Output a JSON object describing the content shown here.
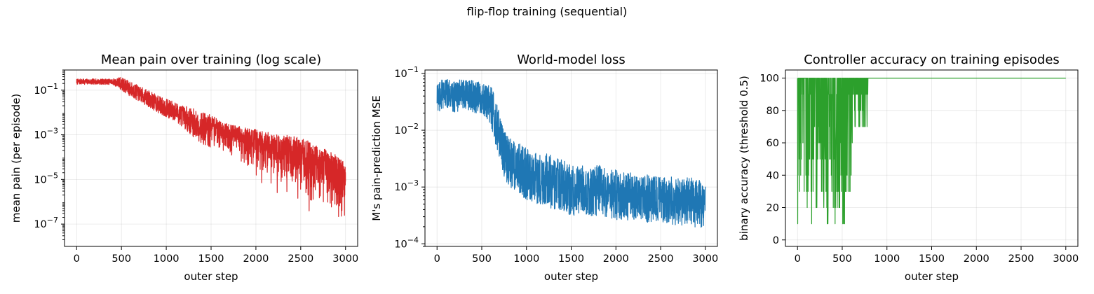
{
  "figure": {
    "suptitle": "flip-flop training (sequential)"
  },
  "chart_data": [
    {
      "type": "line",
      "title": "Mean pain over training (log scale)",
      "xlabel": "outer step",
      "ylabel": "mean pain (per episode)",
      "color": "#d62728",
      "yscale": "log",
      "xlim": [
        -135,
        3135
      ],
      "ylim": [
        1e-08,
        0.8
      ],
      "xticks": [
        0,
        500,
        1000,
        1500,
        2000,
        2500,
        3000
      ],
      "xtick_labels": [
        "0",
        "500",
        "1000",
        "1500",
        "2000",
        "2500",
        "3000"
      ],
      "yticks": [
        1e-07,
        1e-05,
        0.001,
        0.1
      ],
      "ytick_labels": [
        [
          "10",
          "−7"
        ],
        [
          "10",
          "−5"
        ],
        [
          "10",
          "−3"
        ],
        [
          "10",
          "−1"
        ]
      ],
      "grid": true,
      "series": [
        {
          "x": [
            0,
            100,
            200,
            300,
            400,
            500,
            550,
            600,
            700,
            800,
            900,
            1000,
            1100,
            1200,
            1300,
            1400,
            1500,
            1600,
            1700,
            1800,
            1900,
            2000,
            2100,
            2200,
            2300,
            2400,
            2500,
            2600,
            2700,
            2800,
            2900,
            3000
          ],
          "high": [
            0.32,
            0.32,
            0.32,
            0.32,
            0.32,
            0.4,
            0.3,
            0.25,
            0.15,
            0.1,
            0.06,
            0.04,
            0.03,
            0.02,
            0.015,
            0.01,
            0.008,
            0.004,
            0.003,
            0.0025,
            0.002,
            0.0018,
            0.0014,
            0.0012,
            0.001,
            0.0009,
            0.0007,
            0.0005,
            0.0003,
            0.0002,
            0.00012,
            5e-05
          ],
          "low": [
            0.18,
            0.18,
            0.18,
            0.18,
            0.18,
            0.1,
            0.07,
            0.05,
            0.03,
            0.018,
            0.01,
            0.006,
            0.004,
            0.002,
            0.0008,
            0.0004,
            0.0002,
            0.0001,
            6e-05,
            3e-05,
            1e-05,
            6e-06,
            3e-06,
            2e-06,
            1e-06,
            6e-07,
            4e-07,
            2e-07,
            2e-07,
            1e-07,
            6e-08,
            3e-08
          ]
        }
      ]
    },
    {
      "type": "line",
      "title": "World-model loss",
      "xlabel": "outer step",
      "ylabel": "M's pain-prediction MSE",
      "color": "#1f77b4",
      "yscale": "log",
      "xlim": [
        -135,
        3135
      ],
      "ylim": [
        9e-05,
        0.115
      ],
      "xticks": [
        0,
        500,
        1000,
        1500,
        2000,
        2500,
        3000
      ],
      "xtick_labels": [
        "0",
        "500",
        "1000",
        "1500",
        "2000",
        "2500",
        "3000"
      ],
      "yticks": [
        0.0001,
        0.001,
        0.01,
        0.1
      ],
      "ytick_labels": [
        [
          "10",
          "−4"
        ],
        [
          "10",
          "−3"
        ],
        [
          "10",
          "−2"
        ],
        [
          "10",
          "−1"
        ]
      ],
      "grid": true,
      "series": [
        {
          "x": [
            0,
            100,
            200,
            300,
            400,
            500,
            600,
            650,
            700,
            750,
            800,
            900,
            1000,
            1100,
            1200,
            1300,
            1400,
            1500,
            1600,
            1700,
            1800,
            1900,
            2000,
            2100,
            2200,
            2300,
            2400,
            2500,
            2600,
            2700,
            2800,
            2900,
            3000
          ],
          "high": [
            0.08,
            0.08,
            0.075,
            0.08,
            0.075,
            0.07,
            0.06,
            0.04,
            0.02,
            0.012,
            0.008,
            0.006,
            0.005,
            0.004,
            0.004,
            0.0035,
            0.003,
            0.0025,
            0.0025,
            0.002,
            0.0025,
            0.002,
            0.002,
            0.0018,
            0.0018,
            0.0016,
            0.0017,
            0.0015,
            0.0016,
            0.0014,
            0.0015,
            0.0014,
            0.0012
          ],
          "low": [
            0.02,
            0.025,
            0.02,
            0.025,
            0.02,
            0.02,
            0.012,
            0.006,
            0.003,
            0.0015,
            0.001,
            0.0008,
            0.0006,
            0.0005,
            0.0005,
            0.0004,
            0.0004,
            0.0003,
            0.00035,
            0.0003,
            0.0003,
            0.00028,
            0.00026,
            0.00026,
            0.00025,
            0.00025,
            0.00022,
            0.00025,
            0.00022,
            0.0002,
            0.00022,
            0.00018,
            0.0002
          ]
        }
      ]
    },
    {
      "type": "line",
      "title": "Controller accuracy on training episodes",
      "xlabel": "outer step",
      "ylabel": "binary accuracy (threshold 0.5)",
      "color": "#2ca02c",
      "yscale": "linear",
      "xlim": [
        -135,
        3135
      ],
      "ylim": [
        -4,
        105
      ],
      "xticks": [
        0,
        500,
        1000,
        1500,
        2000,
        2500,
        3000
      ],
      "xtick_labels": [
        "0",
        "500",
        "1000",
        "1500",
        "2000",
        "2500",
        "3000"
      ],
      "yticks": [
        0,
        20,
        40,
        60,
        80,
        100
      ],
      "ytick_labels": [
        [
          "0",
          ""
        ],
        [
          "20",
          ""
        ],
        [
          "40",
          ""
        ],
        [
          "60",
          ""
        ],
        [
          "80",
          ""
        ],
        [
          "100",
          ""
        ]
      ],
      "grid": true,
      "series": [
        {
          "x": [
            0,
            100,
            200,
            300,
            400,
            500,
            550,
            600,
            700,
            780,
            800,
            3000
          ],
          "high": [
            100,
            100,
            100,
            100,
            100,
            100,
            100,
            100,
            100,
            100,
            100,
            100
          ],
          "low": [
            10,
            5,
            10,
            10,
            10,
            10,
            0,
            40,
            60,
            70,
            100,
            100
          ]
        }
      ]
    }
  ]
}
